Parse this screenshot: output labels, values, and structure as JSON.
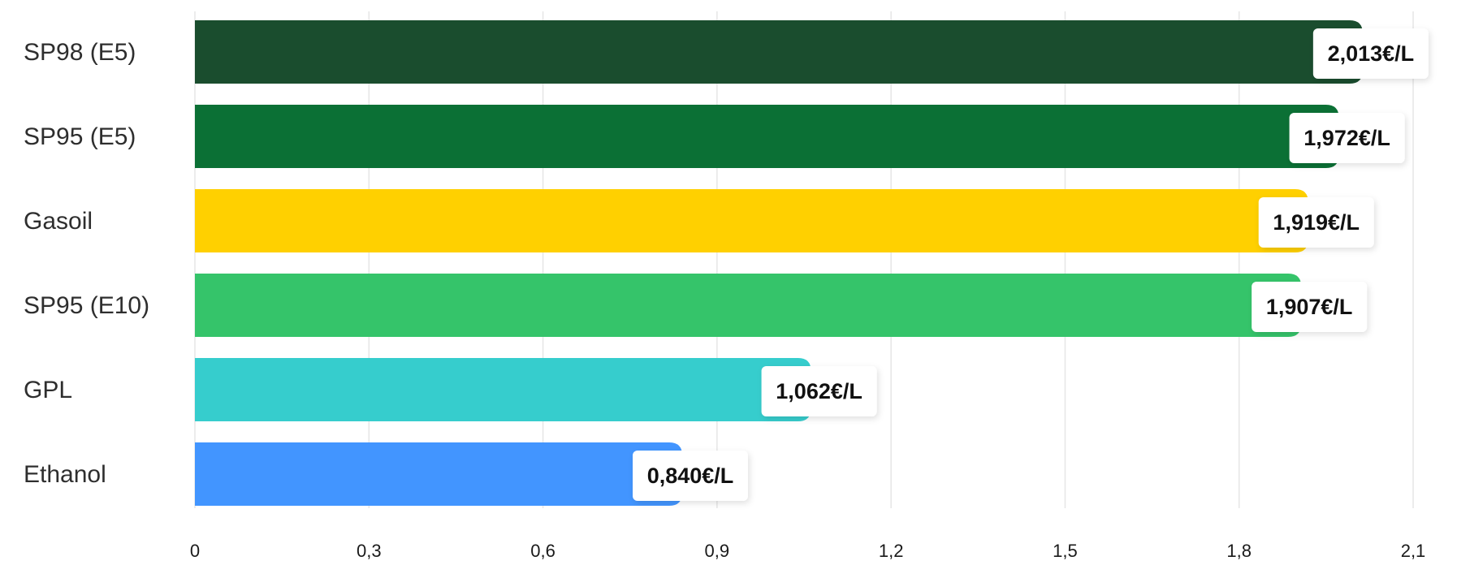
{
  "chart_data": {
    "type": "bar",
    "orientation": "horizontal",
    "categories": [
      "SP98 (E5)",
      "SP95 (E5)",
      "Gasoil",
      "SP95 (E10)",
      "GPL",
      "Ethanol"
    ],
    "values": [
      2.013,
      1.972,
      1.919,
      1.907,
      1.062,
      0.84
    ],
    "value_labels": [
      "2,013€/L",
      "1,972€/L",
      "1,919€/L",
      "1,907€/L",
      "1,062€/L",
      "0,840€/L"
    ],
    "colors": [
      "#1a4d2e",
      "#0b7035",
      "#ffd000",
      "#35c46a",
      "#36cdcd",
      "#4295ff"
    ],
    "xlim": [
      0,
      2.1
    ],
    "xticks": [
      0,
      0.3,
      0.6,
      0.9,
      1.2,
      1.5,
      1.8,
      2.1
    ],
    "xtick_labels": [
      "0",
      "0,3",
      "0,6",
      "0,9",
      "1,2",
      "1,5",
      "1,8",
      "2,1"
    ],
    "grid": true,
    "title": "",
    "xlabel": "",
    "ylabel": ""
  }
}
